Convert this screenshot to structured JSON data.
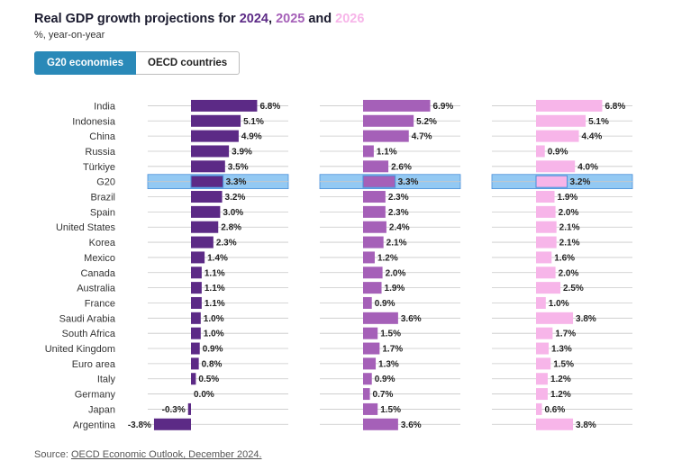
{
  "header": {
    "title_prefix": "Real GDP growth projections for ",
    "year_1": "2024",
    "sep_1": ", ",
    "year_2": "2025",
    "sep_2": " and ",
    "year_3": "2026",
    "subtitle": "%, year-on-year"
  },
  "tabs": [
    {
      "label": "G20 economies",
      "active": true
    },
    {
      "label": "OECD countries",
      "active": false
    }
  ],
  "source": {
    "prefix": "Source: ",
    "link": "OECD Economic Outlook, December 2024."
  },
  "colors": {
    "year_1": "#5c2a86",
    "year_2": "#a560b8",
    "year_3": "#f7b5e9",
    "highlight": "#93c9f3",
    "highlight_border": "#4a90d9",
    "accent": "#2a89b8"
  },
  "chart_data": {
    "type": "bar",
    "orientation": "horizontal",
    "highlight_category": "G20",
    "categories": [
      "India",
      "Indonesia",
      "China",
      "Russia",
      "Türkiye",
      "G20",
      "Brazil",
      "Spain",
      "United States",
      "Korea",
      "Mexico",
      "Canada",
      "Australia",
      "France",
      "Saudi Arabia",
      "South Africa",
      "United Kingdom",
      "Euro area",
      "Italy",
      "Germany",
      "Japan",
      "Argentina"
    ],
    "series": [
      {
        "name": "2024",
        "labels": [
          "6.8%",
          "5.1%",
          "4.9%",
          "3.9%",
          "3.5%",
          "3.3%",
          "3.2%",
          "3.0%",
          "2.8%",
          "2.3%",
          "1.4%",
          "1.1%",
          "1.1%",
          "1.1%",
          "1.0%",
          "1.0%",
          "0.9%",
          "0.8%",
          "0.5%",
          "0.0%",
          "-0.3%",
          "-3.8%"
        ],
        "values": [
          6.8,
          5.1,
          4.9,
          3.9,
          3.5,
          3.3,
          3.2,
          3.0,
          2.8,
          2.3,
          1.4,
          1.1,
          1.1,
          1.1,
          1.0,
          1.0,
          0.9,
          0.8,
          0.5,
          0.0,
          -0.3,
          -3.8
        ]
      },
      {
        "name": "2025",
        "labels": [
          "6.9%",
          "5.2%",
          "4.7%",
          "1.1%",
          "2.6%",
          "3.3%",
          "2.3%",
          "2.3%",
          "2.4%",
          "2.1%",
          "1.2%",
          "2.0%",
          "1.9%",
          "0.9%",
          "3.6%",
          "1.5%",
          "1.7%",
          "1.3%",
          "0.9%",
          "0.7%",
          "1.5%",
          "3.6%"
        ],
        "values": [
          6.9,
          5.2,
          4.7,
          1.1,
          2.6,
          3.3,
          2.3,
          2.3,
          2.4,
          2.1,
          1.2,
          2.0,
          1.9,
          0.9,
          3.6,
          1.5,
          1.7,
          1.3,
          0.9,
          0.7,
          1.5,
          3.6
        ]
      },
      {
        "name": "2026",
        "labels": [
          "6.8%",
          "5.1%",
          "4.4%",
          "0.9%",
          "4.0%",
          "3.2%",
          "1.9%",
          "2.0%",
          "2.1%",
          "2.1%",
          "1.6%",
          "2.0%",
          "2.5%",
          "1.0%",
          "3.8%",
          "1.7%",
          "1.3%",
          "1.5%",
          "1.2%",
          "1.2%",
          "0.6%",
          "3.8%"
        ],
        "values": [
          6.8,
          5.1,
          4.4,
          0.9,
          4.0,
          3.2,
          1.9,
          2.0,
          2.1,
          2.1,
          1.6,
          2.0,
          2.5,
          1.0,
          3.8,
          1.7,
          1.3,
          1.5,
          1.2,
          1.2,
          0.6,
          3.8
        ]
      }
    ]
  }
}
